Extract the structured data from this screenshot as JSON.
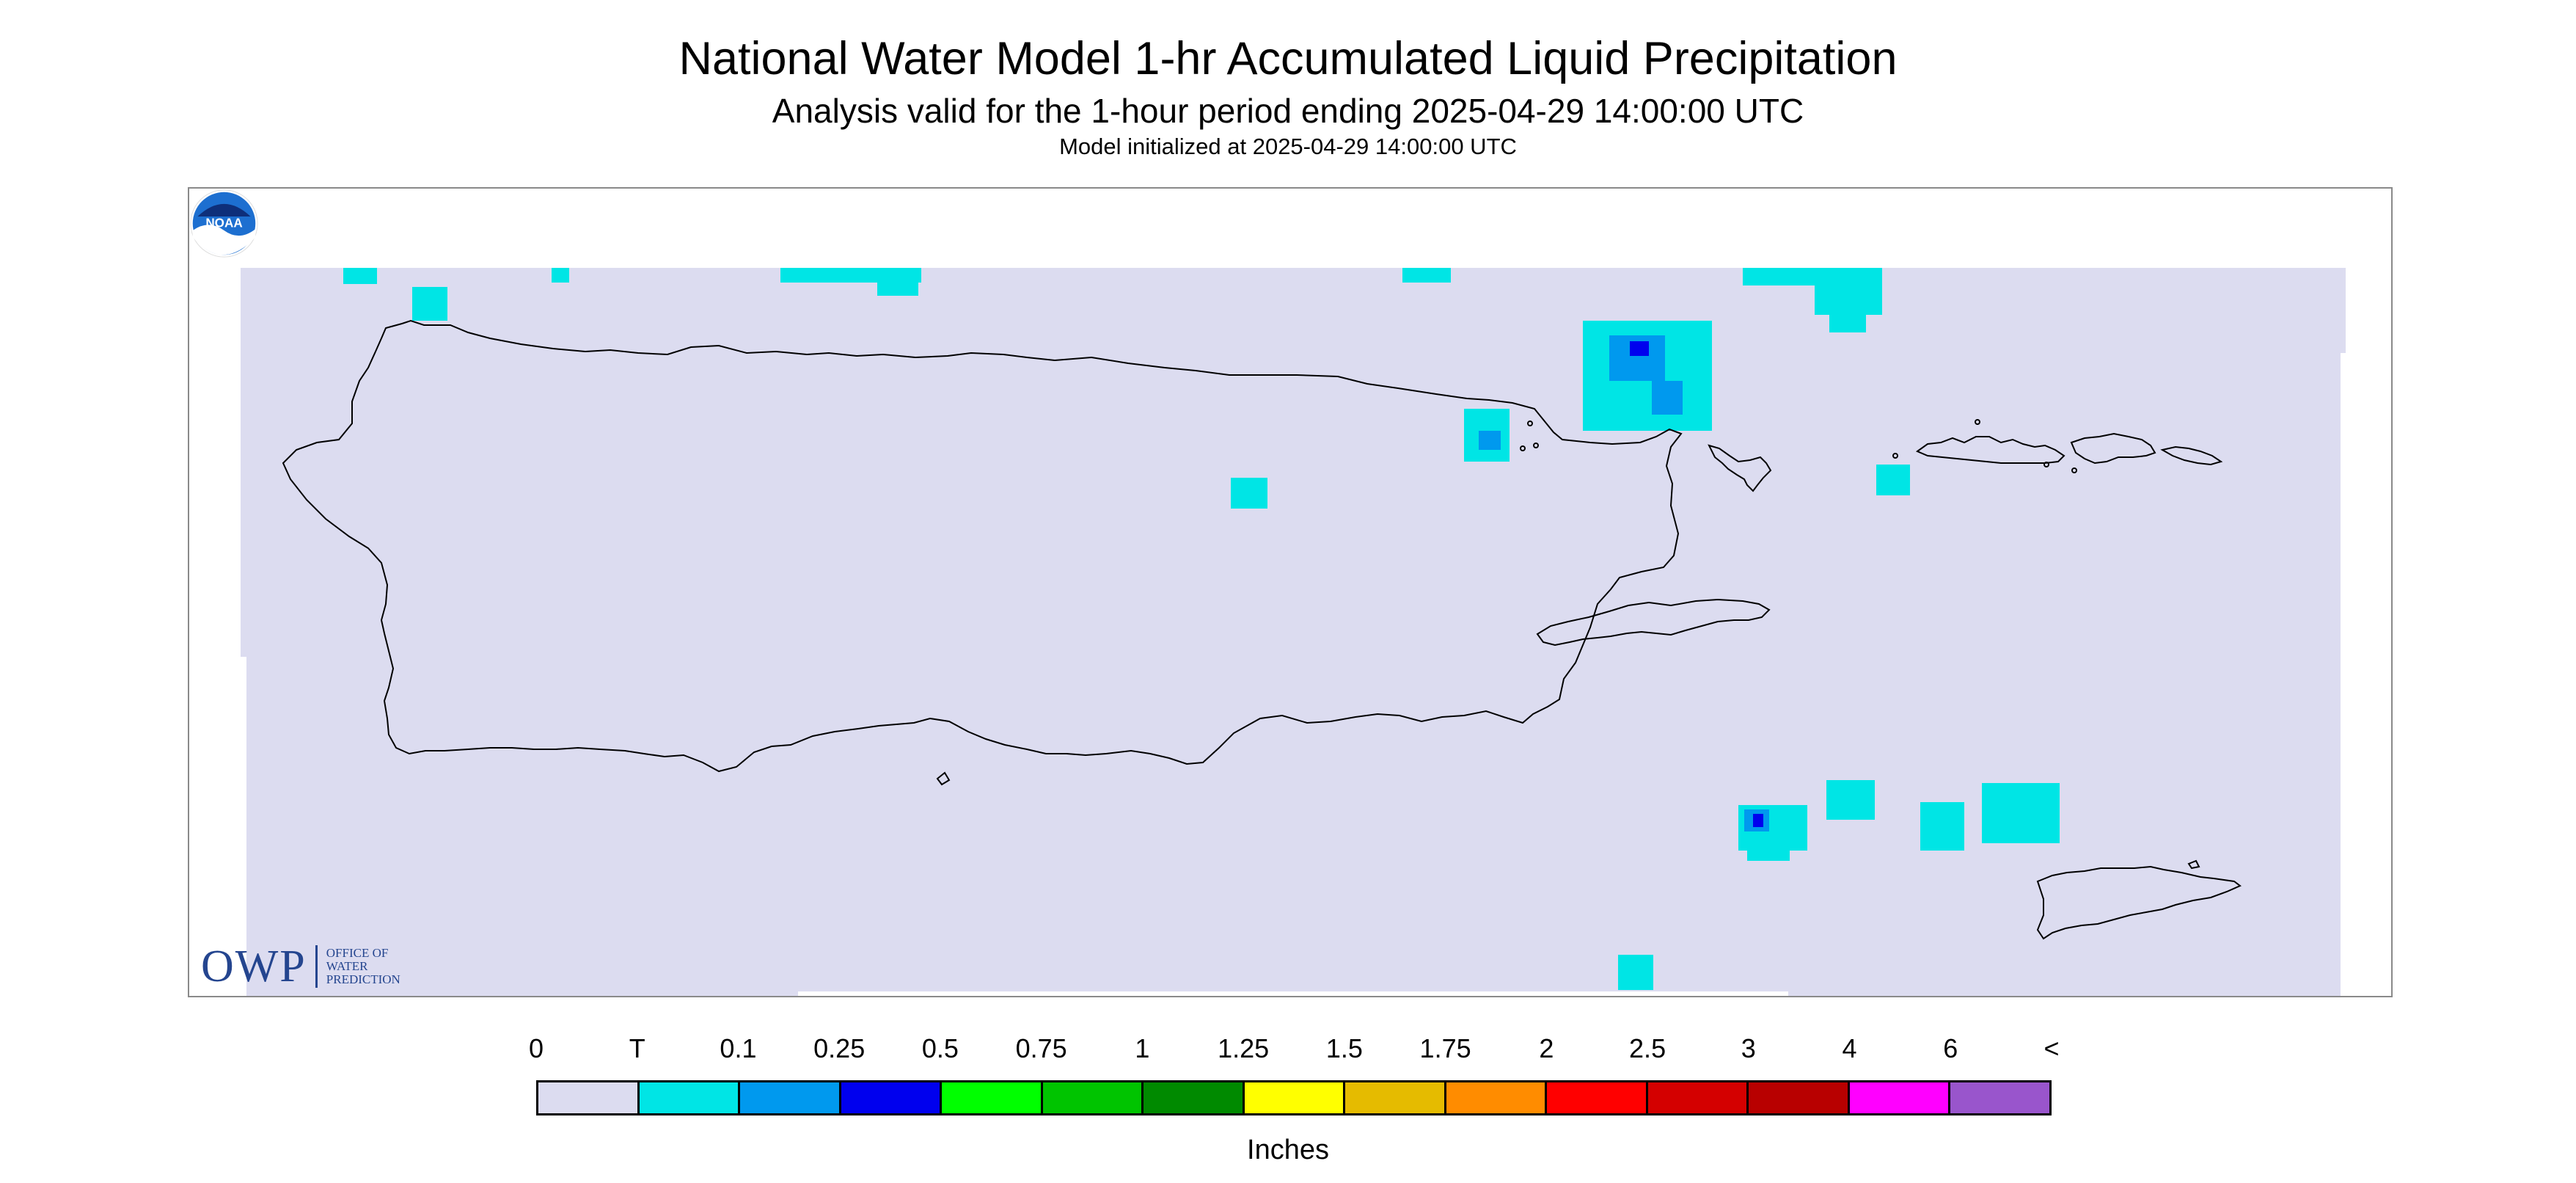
{
  "header": {
    "title": "National Water Model 1-hr Accumulated Liquid Precipitation",
    "subtitle": "Analysis valid for the 1-hour period ending 2025-04-29 14:00:00 UTC",
    "init": "Model initialized at 2025-04-29 14:00:00 UTC"
  },
  "map": {
    "region": "Puerto Rico and U.S. Virgin Islands",
    "background_color": "#dcdcf0",
    "precip_colors": {
      "trace": "#00e5e5",
      "light": "#0099ee",
      "moderate": "#0000ee"
    }
  },
  "logos": {
    "owp": {
      "text": "OWP",
      "sub": [
        "OFFICE OF",
        "WATER",
        "PREDICTION"
      ],
      "color": "#24458f"
    },
    "noaa": {
      "text": "NOAA",
      "icon": "noaa-logo"
    }
  },
  "legend": {
    "labels": [
      "0",
      "T",
      "0.1",
      "0.25",
      "0.5",
      "0.75",
      "1",
      "1.25",
      "1.5",
      "1.75",
      "2",
      "2.5",
      "3",
      "4",
      "6",
      "<"
    ],
    "colors": [
      "#dcdcf0",
      "#00e5e5",
      "#0099ee",
      "#0000ee",
      "#00ff00",
      "#00c400",
      "#008a00",
      "#ffff00",
      "#e5bb00",
      "#ff8c00",
      "#ff0000",
      "#d40000",
      "#b80000",
      "#ff00ff",
      "#9955cc"
    ],
    "units": "Inches"
  }
}
